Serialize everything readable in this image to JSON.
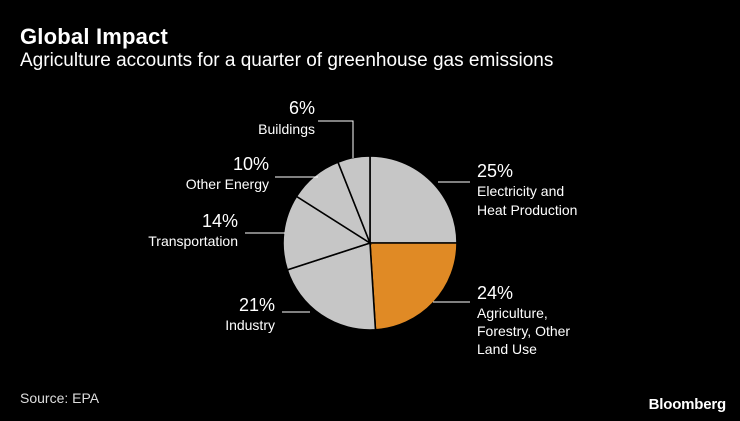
{
  "title": "Global Impact",
  "subtitle": "Agriculture accounts for a quarter of greenhouse gas emissions",
  "source": "Source: EPA",
  "brand": "Bloomberg",
  "colors": {
    "background": "#000000",
    "slice": "#c6c6c6",
    "highlight": "#e08a25",
    "text": "#ffffff"
  },
  "chart_data": {
    "type": "pie",
    "slices": [
      {
        "label": "Electricity and Heat Production",
        "lines": [
          "Electricity and",
          "Heat Production"
        ],
        "pct_label": "25%",
        "value": 25,
        "highlight": false
      },
      {
        "label": "Agriculture, Forestry, Other Land Use",
        "lines": [
          "Agriculture,",
          "Forestry, Other",
          "Land Use"
        ],
        "pct_label": "24%",
        "value": 24,
        "highlight": true
      },
      {
        "label": "Industry",
        "lines": [
          "Industry"
        ],
        "pct_label": "21%",
        "value": 21,
        "highlight": false
      },
      {
        "label": "Transportation",
        "lines": [
          "Transportation"
        ],
        "pct_label": "14%",
        "value": 14,
        "highlight": false
      },
      {
        "label": "Other Energy",
        "lines": [
          "Other Energy"
        ],
        "pct_label": "10%",
        "value": 10,
        "highlight": false
      },
      {
        "label": "Buildings",
        "lines": [
          "Buildings"
        ],
        "pct_label": "6%",
        "value": 6,
        "highlight": false
      }
    ]
  }
}
